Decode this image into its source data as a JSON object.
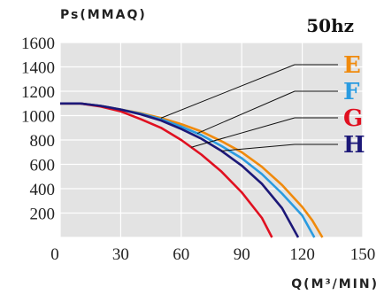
{
  "chart_data": {
    "type": "line",
    "ylabel": "Ps(MMAQ)",
    "xlabel": "Q(M³/MIN)",
    "annotation": "50hz",
    "xlim": [
      0,
      150
    ],
    "ylim": [
      0,
      1600
    ],
    "x_ticks": [
      "0",
      "30",
      "60",
      "90",
      "120",
      "150"
    ],
    "y_ticks": [
      "200",
      "400",
      "600",
      "800",
      "1000",
      "1200",
      "1400",
      "1600"
    ],
    "grid": true,
    "legend_placement": "right",
    "series": [
      {
        "name": "E",
        "color": "#f08a0c",
        "points": [
          [
            0,
            1100
          ],
          [
            10,
            1100
          ],
          [
            20,
            1080
          ],
          [
            30,
            1050
          ],
          [
            40,
            1020
          ],
          [
            50,
            980
          ],
          [
            60,
            930
          ],
          [
            70,
            870
          ],
          [
            80,
            790
          ],
          [
            90,
            700
          ],
          [
            100,
            580
          ],
          [
            110,
            430
          ],
          [
            120,
            250
          ],
          [
            125,
            140
          ],
          [
            130,
            0
          ]
        ]
      },
      {
        "name": "F",
        "color": "#2a9be0",
        "points": [
          [
            0,
            1100
          ],
          [
            10,
            1100
          ],
          [
            20,
            1080
          ],
          [
            30,
            1050
          ],
          [
            40,
            1015
          ],
          [
            50,
            970
          ],
          [
            60,
            910
          ],
          [
            70,
            840
          ],
          [
            80,
            750
          ],
          [
            90,
            650
          ],
          [
            100,
            520
          ],
          [
            110,
            360
          ],
          [
            120,
            180
          ],
          [
            126,
            0
          ]
        ]
      },
      {
        "name": "G",
        "color": "#e01020",
        "points": [
          [
            0,
            1100
          ],
          [
            10,
            1100
          ],
          [
            20,
            1075
          ],
          [
            30,
            1035
          ],
          [
            40,
            970
          ],
          [
            50,
            900
          ],
          [
            60,
            800
          ],
          [
            70,
            680
          ],
          [
            80,
            540
          ],
          [
            90,
            370
          ],
          [
            100,
            160
          ],
          [
            105,
            0
          ]
        ]
      },
      {
        "name": "H",
        "color": "#1c1878",
        "points": [
          [
            0,
            1100
          ],
          [
            10,
            1100
          ],
          [
            20,
            1080
          ],
          [
            30,
            1050
          ],
          [
            40,
            1010
          ],
          [
            50,
            960
          ],
          [
            60,
            890
          ],
          [
            70,
            810
          ],
          [
            80,
            710
          ],
          [
            90,
            590
          ],
          [
            100,
            440
          ],
          [
            110,
            240
          ],
          [
            118,
            0
          ]
        ]
      }
    ]
  }
}
